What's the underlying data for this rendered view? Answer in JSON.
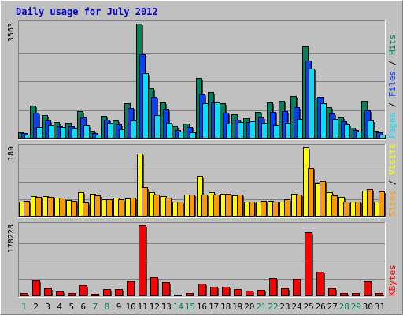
{
  "title": "Daily usage for July 2012",
  "colors": {
    "background": "#c0c0c0",
    "panel": "#c0c0c0",
    "title": "#0000cc",
    "hits": "#00805c",
    "files": "#0040ff",
    "pages": "#00e0ff",
    "visits": "#ffff00",
    "sites": "#ff9900",
    "kbytes": "#ff0000",
    "weekday_label": "#000000",
    "weekend_label": "#00805c"
  },
  "chart_data": [
    {
      "type": "bar",
      "title": "Daily usage for July 2012",
      "ymax_label": "3563",
      "legend": [
        {
          "name": "Pages",
          "color": "#00e0ff"
        },
        {
          "name": "Files",
          "color": "#0040ff"
        },
        {
          "name": "Hits",
          "color": "#00805c"
        }
      ],
      "legend_separator": " / ",
      "ylim": [
        0,
        3563
      ],
      "categories": [
        "1",
        "2",
        "3",
        "4",
        "5",
        "6",
        "7",
        "8",
        "9",
        "10",
        "11",
        "12",
        "13",
        "14",
        "15",
        "16",
        "17",
        "18",
        "19",
        "20",
        "21",
        "22",
        "23",
        "24",
        "25",
        "26",
        "27",
        "28",
        "29",
        "30",
        "31"
      ],
      "series": [
        {
          "name": "Hits",
          "values": [
            200,
            1020,
            740,
            520,
            480,
            850,
            250,
            710,
            560,
            1100,
            3563,
            1550,
            1120,
            400,
            470,
            1880,
            1450,
            1090,
            750,
            640,
            820,
            1130,
            1180,
            1310,
            2860,
            1270,
            980,
            660,
            330,
            1180,
            250
          ]
        },
        {
          "name": "Files",
          "values": [
            160,
            810,
            560,
            390,
            380,
            650,
            180,
            590,
            430,
            950,
            2620,
            1290,
            910,
            280,
            370,
            1380,
            1120,
            800,
            580,
            510,
            660,
            820,
            850,
            970,
            2420,
            1290,
            780,
            530,
            260,
            880,
            200
          ]
        },
        {
          "name": "Pages",
          "values": [
            110,
            370,
            420,
            360,
            320,
            420,
            110,
            480,
            290,
            550,
            2030,
            740,
            480,
            210,
            190,
            1100,
            1120,
            460,
            510,
            530,
            480,
            410,
            480,
            600,
            2160,
            1100,
            610,
            430,
            210,
            550,
            110
          ]
        }
      ]
    },
    {
      "type": "bar",
      "ymax_label": "189",
      "legend": [
        {
          "name": "Sites",
          "color": "#ff9900"
        },
        {
          "name": "Visits",
          "color": "#ffff00"
        }
      ],
      "legend_separator": " / ",
      "ylim": [
        0,
        189
      ],
      "categories": [
        "1",
        "2",
        "3",
        "4",
        "5",
        "6",
        "7",
        "8",
        "9",
        "10",
        "11",
        "12",
        "13",
        "14",
        "15",
        "16",
        "17",
        "18",
        "19",
        "20",
        "21",
        "22",
        "23",
        "24",
        "25",
        "26",
        "27",
        "28",
        "29",
        "30",
        "31"
      ],
      "series": [
        {
          "name": "Visits",
          "values": [
            40,
            55,
            55,
            52,
            46,
            67,
            62,
            48,
            52,
            50,
            172,
            66,
            55,
            40,
            61,
            110,
            66,
            63,
            58,
            40,
            40,
            42,
            40,
            63,
            189,
            90,
            66,
            54,
            40,
            70,
            40
          ]
        },
        {
          "name": "Sites",
          "values": [
            42,
            53,
            53,
            51,
            44,
            39,
            58,
            47,
            48,
            51,
            80,
            60,
            52,
            40,
            60,
            60,
            61,
            62,
            60,
            40,
            42,
            40,
            47,
            61,
            134,
            96,
            58,
            40,
            40,
            75,
            69
          ]
        }
      ]
    },
    {
      "type": "bar",
      "ymax_label": "178228",
      "legend": [
        {
          "name": "KBytes",
          "color": "#ff0000"
        }
      ],
      "legend_separator": "",
      "ylim": [
        0,
        178228
      ],
      "categories": [
        "1",
        "2",
        "3",
        "4",
        "5",
        "6",
        "7",
        "8",
        "9",
        "10",
        "11",
        "12",
        "13",
        "14",
        "15",
        "16",
        "17",
        "18",
        "19",
        "20",
        "21",
        "22",
        "23",
        "24",
        "25",
        "26",
        "27",
        "28",
        "29",
        "30",
        "31"
      ],
      "series": [
        {
          "name": "KBytes",
          "values": [
            8000,
            39000,
            20000,
            12000,
            8000,
            27000,
            5000,
            18000,
            18000,
            37000,
            178228,
            48000,
            36000,
            4000,
            8000,
            32000,
            24000,
            24000,
            18000,
            14000,
            16000,
            46000,
            19000,
            43000,
            161000,
            61000,
            20000,
            8000,
            8000,
            38000,
            8000
          ]
        }
      ]
    }
  ],
  "weekend_days": [
    "1",
    "7",
    "8",
    "14",
    "15",
    "21",
    "22",
    "28",
    "29"
  ]
}
